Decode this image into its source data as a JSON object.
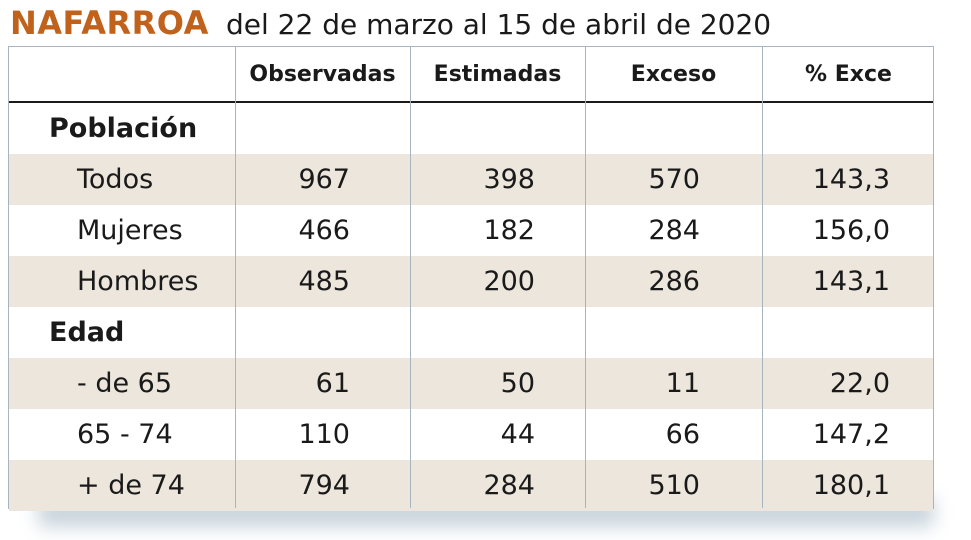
{
  "title": {
    "main": "NAFARROA",
    "sub": "del 22 de marzo al 15 de abril de 2020"
  },
  "chart_data": {
    "type": "table",
    "columns": [
      "Observadas",
      "Estimadas",
      "Exceso",
      "% Exce"
    ],
    "sections": [
      {
        "label": "Población",
        "rows": [
          {
            "label": "Todos",
            "values": [
              "967",
              "398",
              "570",
              "143,3"
            ]
          },
          {
            "label": "Mujeres",
            "values": [
              "466",
              "182",
              "284",
              "156,0"
            ]
          },
          {
            "label": "Hombres",
            "values": [
              "485",
              "200",
              "286",
              "143,1"
            ]
          }
        ]
      },
      {
        "label": "Edad",
        "rows": [
          {
            "label": "- de 65",
            "values": [
              "61",
              "50",
              "11",
              "22,0"
            ]
          },
          {
            "label": "65 - 74",
            "values": [
              "110",
              "44",
              "66",
              "147,2"
            ]
          },
          {
            "label": "+ de 74",
            "values": [
              "794",
              "284",
              "510",
              "180,1"
            ]
          }
        ]
      }
    ]
  },
  "colors": {
    "title": "#c0621c",
    "row_shade": "#ece6dc",
    "grid": "#a8b5bf"
  }
}
